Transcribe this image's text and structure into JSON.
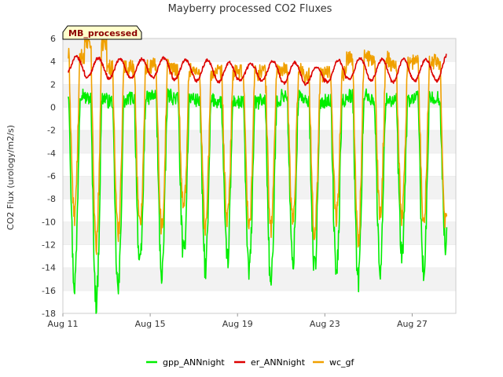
{
  "chart_data": {
    "type": "line",
    "title": "Mayberry processed CO2 Fluxes",
    "ylabel": "CO2 Flux (urology/m2/s)",
    "xlabel": "",
    "ylim": [
      -18,
      6
    ],
    "yticks": [
      -18,
      -16,
      -14,
      -12,
      -10,
      -8,
      -6,
      -4,
      -2,
      0,
      2,
      4,
      6
    ],
    "xlim": [
      "2024-08-11",
      "2024-08-29"
    ],
    "xticks": [
      {
        "date": "2024-08-11",
        "label": "Aug 11"
      },
      {
        "date": "2024-08-15",
        "label": "Aug 15"
      },
      {
        "date": "2024-08-19",
        "label": "Aug 19"
      },
      {
        "date": "2024-08-23",
        "label": "Aug 23"
      },
      {
        "date": "2024-08-27",
        "label": "Aug 27"
      }
    ],
    "grid": "horizontal bands",
    "legend_position": "bottom",
    "badge": "MB_processed",
    "series": [
      {
        "name": "gpp_ANNnight",
        "color": "#00ee00",
        "daily_min": [
          -15.5,
          -17.0,
          -16.0,
          -14.0,
          -14.5,
          -13.0,
          -14.0,
          -13.5,
          -14.5,
          -15.5,
          -13.5,
          -14.0,
          -14.5,
          -15.0,
          -14.0,
          -13.0,
          -14.5,
          -12.0
        ],
        "daily_max": [
          1.2,
          0.8,
          0.5,
          0.8,
          1.0,
          0.8,
          0.6,
          0.5,
          0.4,
          0.6,
          1.0,
          0.5,
          0.6,
          1.0,
          0.7,
          0.6,
          0.8,
          0.8
        ]
      },
      {
        "name": "er_ANNnight",
        "color": "#dd0000",
        "daily_min": [
          2.8,
          2.6,
          2.5,
          2.5,
          2.6,
          2.4,
          2.3,
          2.2,
          2.4,
          2.3,
          2.1,
          2.0,
          2.2,
          2.4,
          2.3,
          2.2,
          2.3,
          2.3
        ],
        "daily_max": [
          4.4,
          4.3,
          4.2,
          4.2,
          4.3,
          4.1,
          4.1,
          3.9,
          3.8,
          4.0,
          3.9,
          3.5,
          4.1,
          4.3,
          4.2,
          4.2,
          4.2,
          4.6
        ]
      },
      {
        "name": "wc_gf",
        "color": "#f0a000",
        "daily_min": [
          -9.5,
          -12.0,
          -11.0,
          -10.5,
          -10.5,
          -9.0,
          -10.5,
          -10.0,
          -10.5,
          -10.5,
          -10.0,
          -11.0,
          -9.5,
          -11.5,
          -9.5,
          -9.5,
          -10.0,
          -10.0
        ],
        "daily_max": [
          4.5,
          5.6,
          3.5,
          3.5,
          3.6,
          3.3,
          3.0,
          3.0,
          3.0,
          3.2,
          3.2,
          2.8,
          3.0,
          4.3,
          4.2,
          3.8,
          4.0,
          4.0
        ]
      }
    ]
  }
}
